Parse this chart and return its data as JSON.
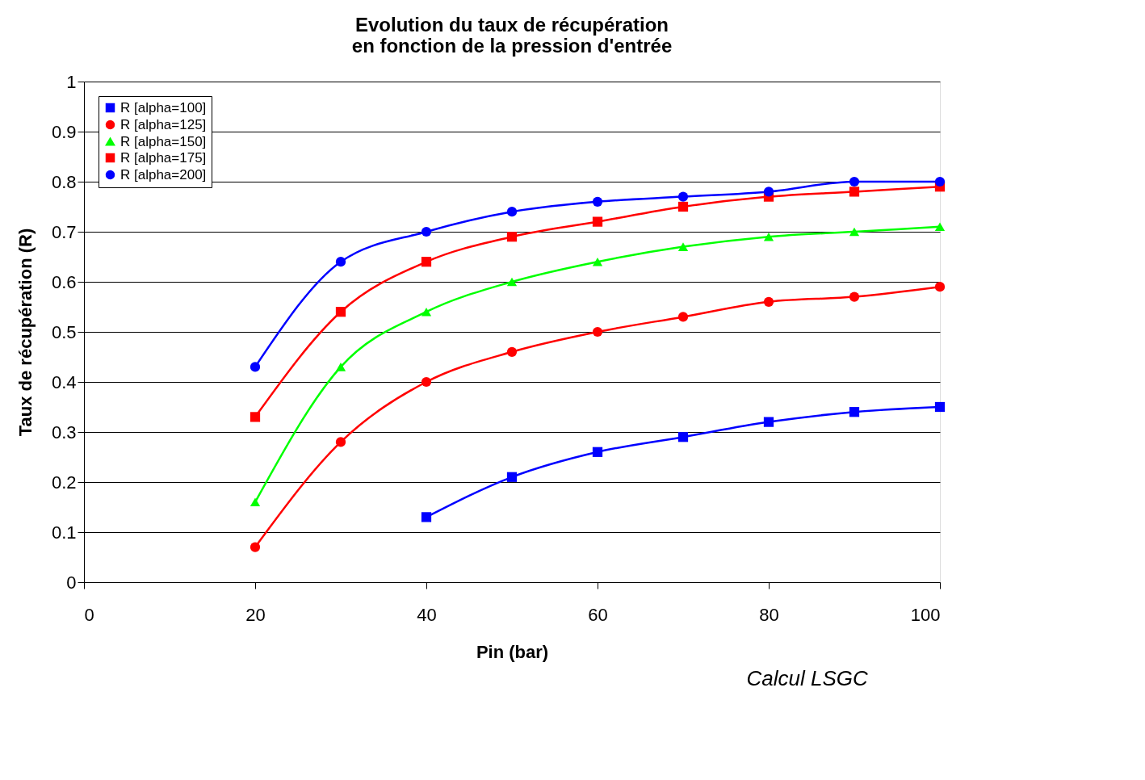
{
  "chart_data": {
    "type": "line",
    "title": "Evolution du taux de récupération\nen fonction de la pression d'entrée",
    "xlabel": "Pin (bar)",
    "ylabel": "Taux de récupération (R)",
    "annotations": [
      "Calcul LSGC"
    ],
    "x": [
      20,
      30,
      40,
      50,
      60,
      70,
      80,
      90,
      100
    ],
    "series": [
      {
        "name": "R [alpha=100]",
        "color": "#0000ff",
        "marker": "square",
        "values": [
          null,
          null,
          0.13,
          0.21,
          0.26,
          0.29,
          0.32,
          0.34,
          0.35
        ]
      },
      {
        "name": "R [alpha=125]",
        "color": "#ff0000",
        "marker": "circle",
        "values": [
          0.07,
          0.28,
          0.4,
          0.46,
          0.5,
          0.53,
          0.56,
          0.57,
          0.59
        ]
      },
      {
        "name": "R [alpha=150]",
        "color": "#00ff00",
        "marker": "triangle",
        "values": [
          0.16,
          0.43,
          0.54,
          0.6,
          0.64,
          0.67,
          0.69,
          0.7,
          0.71
        ]
      },
      {
        "name": "R [alpha=175]",
        "color": "#ff0000",
        "marker": "square",
        "values": [
          0.33,
          0.54,
          0.64,
          0.69,
          0.72,
          0.75,
          0.77,
          0.78,
          0.79
        ]
      },
      {
        "name": "R [alpha=200]",
        "color": "#0000ff",
        "marker": "circle",
        "values": [
          0.43,
          0.64,
          0.7,
          0.74,
          0.76,
          0.77,
          0.78,
          0.8,
          0.8
        ]
      }
    ],
    "xlim": [
      0,
      100
    ],
    "xticks": [
      0,
      20,
      40,
      60,
      80,
      100
    ],
    "ylim": [
      0,
      1
    ],
    "yticks": [
      0,
      0.1,
      0.2,
      0.3,
      0.4,
      0.5,
      0.6,
      0.7,
      0.8,
      0.9,
      1
    ],
    "grid": "y",
    "legend": "top left",
    "line_style": "solid"
  }
}
